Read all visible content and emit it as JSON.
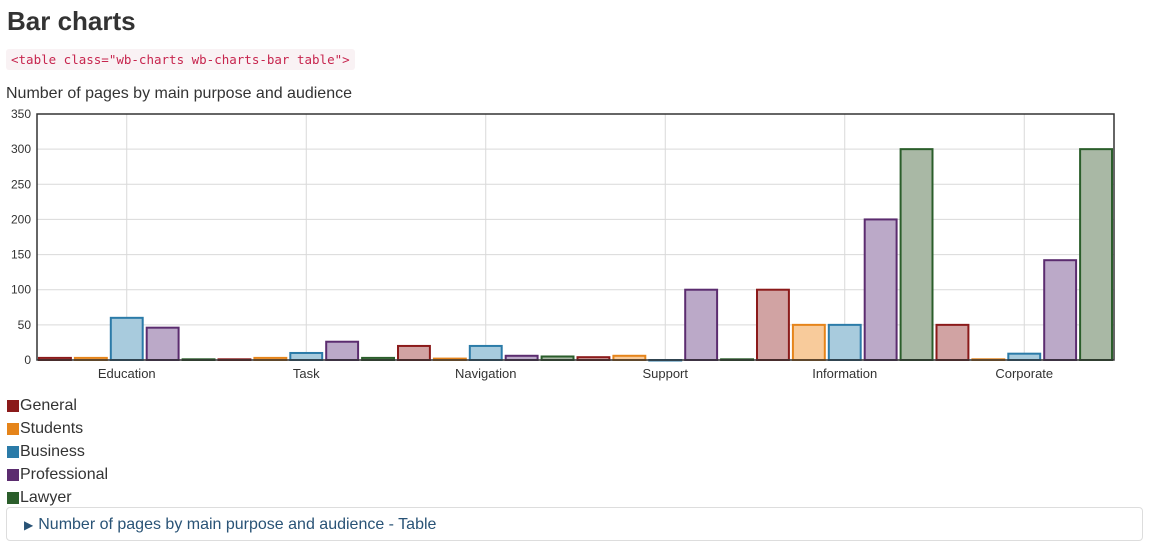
{
  "page_title": "Bar charts",
  "code_snippet": "<table class=\"wb-charts wb-charts-bar table\">",
  "chart_data": {
    "type": "bar",
    "title": "Number of pages by main purpose and audience",
    "categories": [
      "Education",
      "Task",
      "Navigation",
      "Support",
      "Information",
      "Corporate"
    ],
    "series": [
      {
        "name": "General",
        "color": "#8b1a1a",
        "fill": "#d1a3a3",
        "values": [
          3,
          1,
          20,
          4,
          100,
          50
        ]
      },
      {
        "name": "Students",
        "color": "#e5841a",
        "fill": "#f8cb9b",
        "values": [
          3,
          3,
          2,
          6,
          50,
          1
        ]
      },
      {
        "name": "Business",
        "color": "#2b7ba8",
        "fill": "#a8cbdd",
        "values": [
          60,
          10,
          20,
          0,
          50,
          9
        ]
      },
      {
        "name": "Professional",
        "color": "#5b2c6f",
        "fill": "#bba9c8",
        "values": [
          46,
          26,
          6,
          100,
          200,
          142
        ]
      },
      {
        "name": "Lawyer",
        "color": "#2b5e2b",
        "fill": "#a9b8a5",
        "values": [
          1,
          3,
          5,
          1,
          300,
          300
        ]
      }
    ],
    "ylim": [
      0,
      350
    ],
    "yticks": [
      "0",
      "50",
      "100",
      "150",
      "200",
      "250",
      "300",
      "350"
    ],
    "grid": true,
    "legend_position": "bottom-left"
  },
  "table_toggle_label": "Number of pages by main purpose and audience - Table",
  "table_toggle_icon": "triangle-right-icon"
}
